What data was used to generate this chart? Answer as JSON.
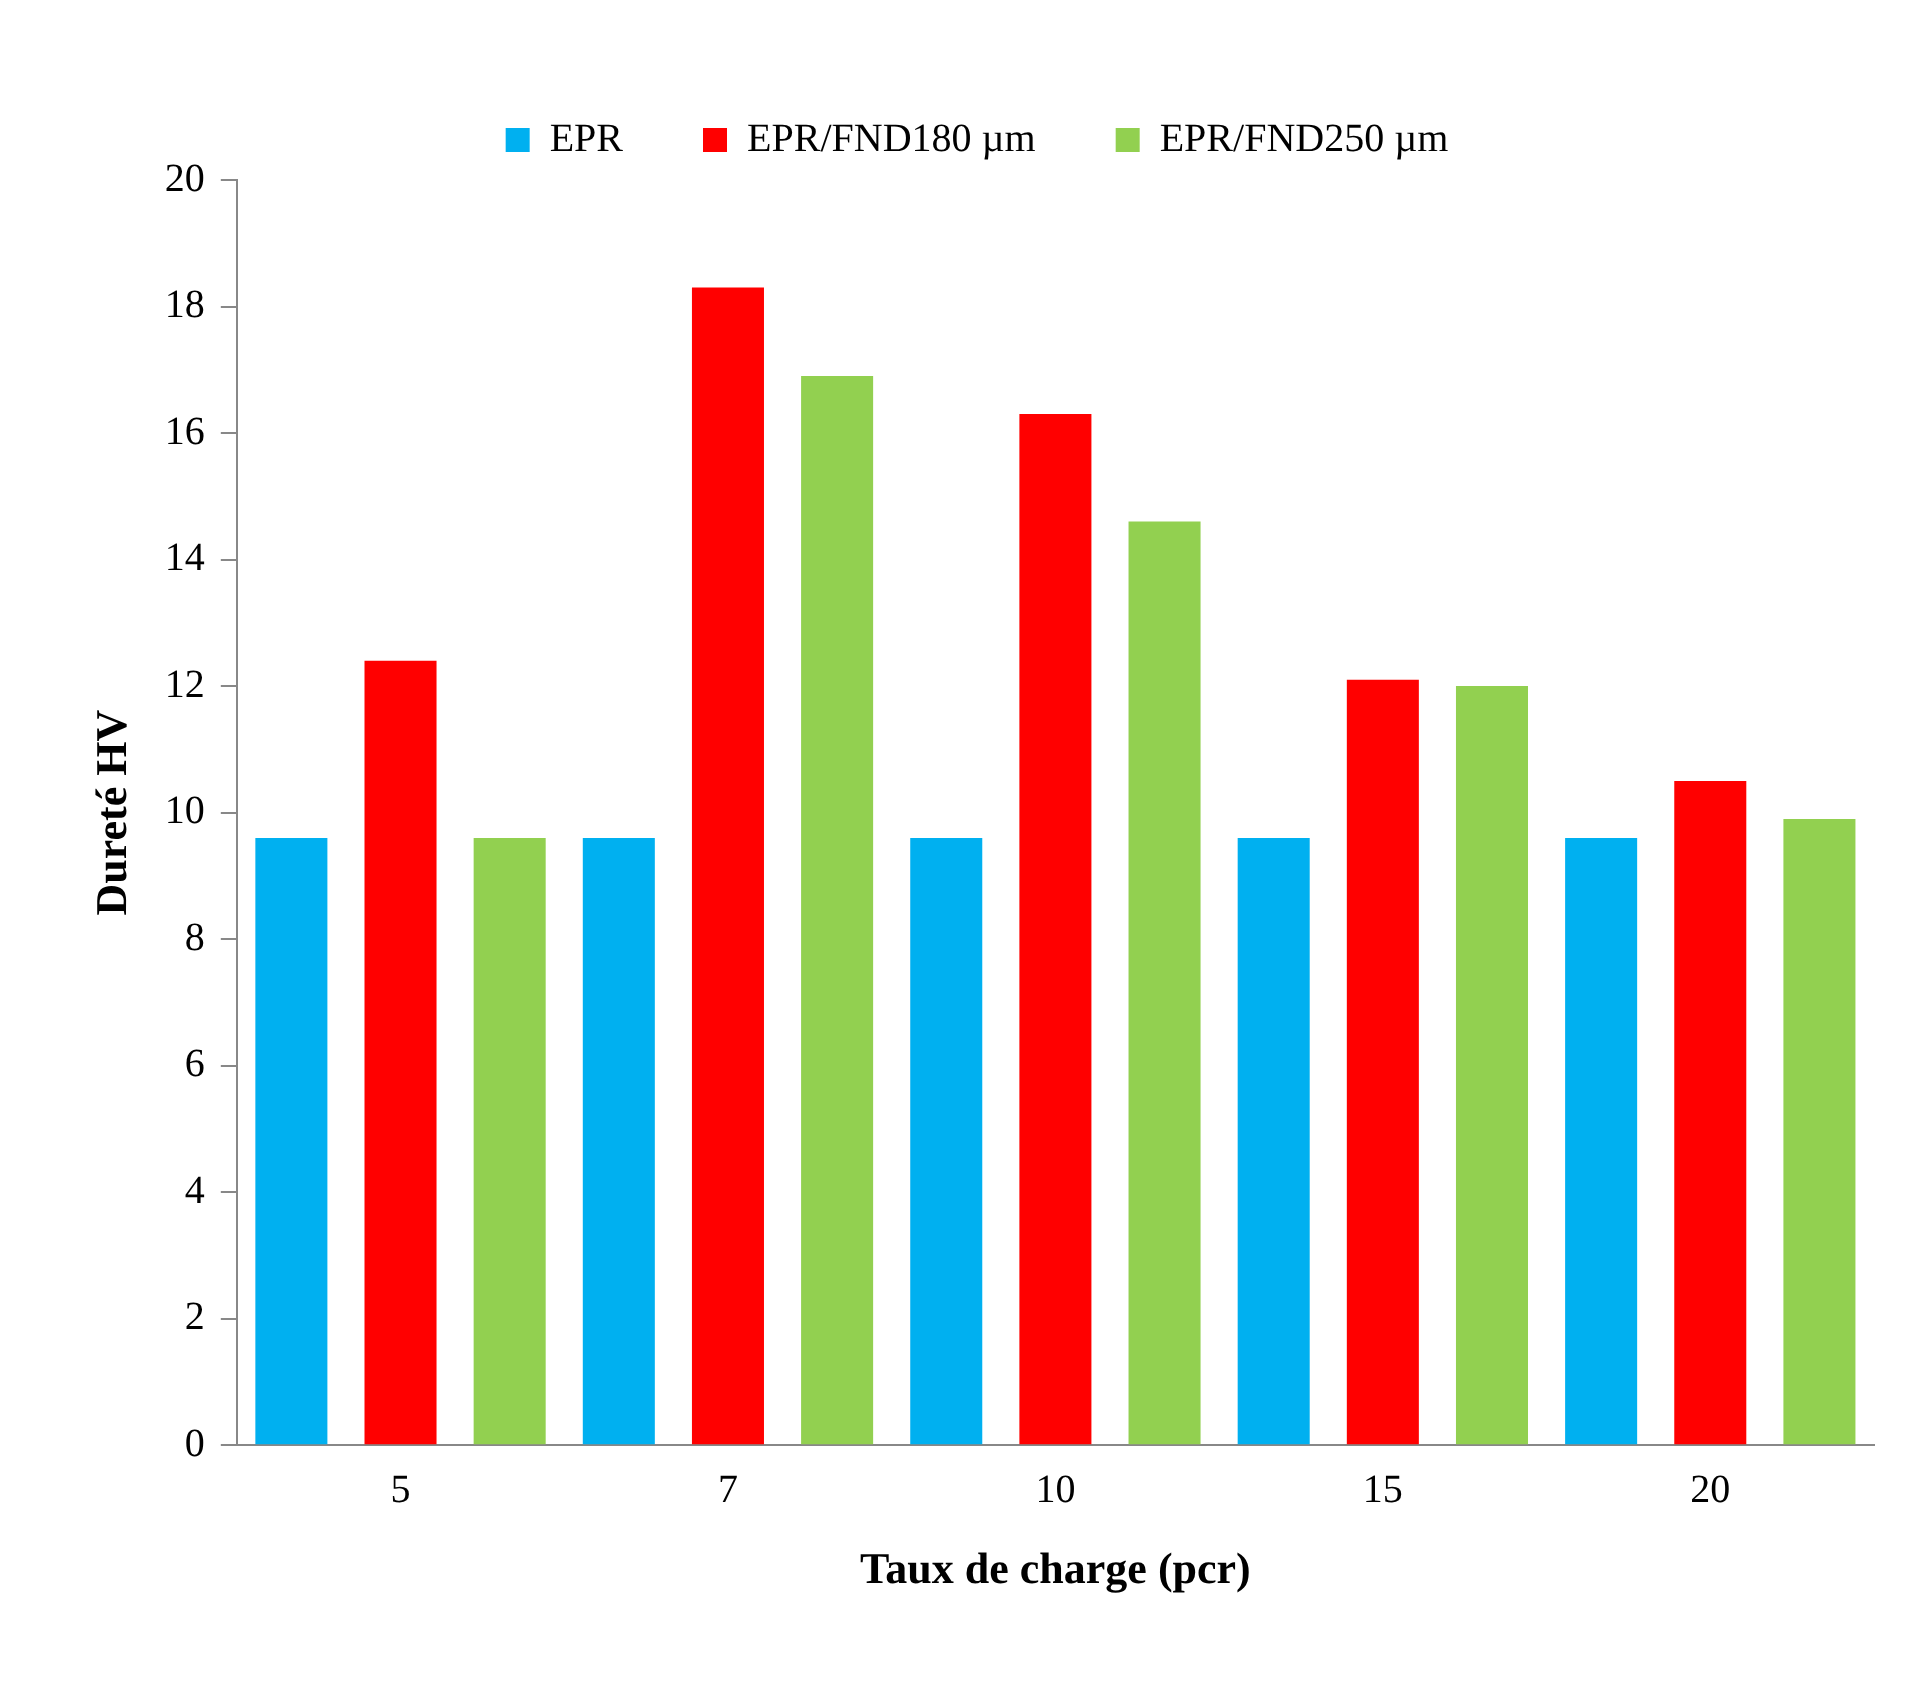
{
  "chart_data": {
    "type": "bar",
    "xlabel": "Taux de charge (pcr)",
    "ylabel": "Dureté HV",
    "categories": [
      "5",
      "7",
      "10",
      "15",
      "20"
    ],
    "series": [
      {
        "name": "EPR",
        "color": "#00b0f0",
        "values": [
          9.6,
          9.6,
          9.6,
          9.6,
          9.6
        ]
      },
      {
        "name": "EPR/FND180 µm",
        "color": "#ff0000",
        "values": [
          12.4,
          18.3,
          16.3,
          12.1,
          10.5
        ]
      },
      {
        "name": "EPR/FND250 µm",
        "color": "#92d050",
        "values": [
          9.6,
          16.9,
          14.6,
          12.0,
          9.9
        ]
      }
    ],
    "ylim": [
      0,
      20
    ],
    "yticks": [
      0,
      2,
      4,
      6,
      8,
      10,
      12,
      14,
      16,
      18,
      20
    ],
    "grid": false,
    "legend": "top"
  }
}
